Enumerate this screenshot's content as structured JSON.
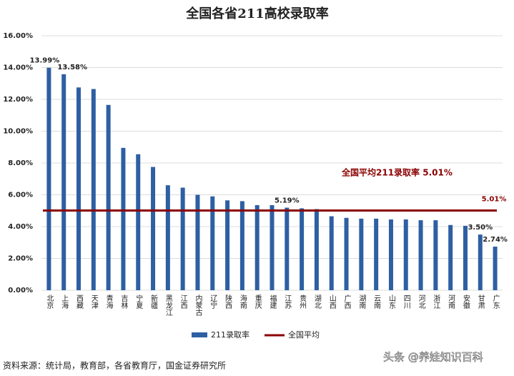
{
  "chart_data": {
    "type": "bar",
    "title": "全国各省211高校录取率",
    "categories": [
      "北京",
      "上海",
      "西藏",
      "天津",
      "青海",
      "吉林",
      "宁夏",
      "新疆",
      "黑龙江",
      "江西",
      "内蒙古",
      "辽宁",
      "陕西",
      "海南",
      "重庆",
      "福建",
      "江苏",
      "贵州",
      "湖北",
      "山西",
      "广西",
      "湖南",
      "云南",
      "山东",
      "四川",
      "河北",
      "浙江",
      "河南",
      "安徽",
      "甘肃",
      "广东"
    ],
    "series": [
      {
        "name": "211录取率",
        "color": "#2e5fa3",
        "values": [
          13.99,
          13.58,
          12.75,
          12.65,
          11.65,
          8.95,
          8.55,
          7.75,
          6.6,
          6.45,
          6.0,
          5.9,
          5.65,
          5.6,
          5.35,
          5.35,
          5.19,
          5.15,
          5.1,
          4.65,
          4.55,
          4.5,
          4.5,
          4.45,
          4.45,
          4.4,
          4.4,
          4.1,
          4.05,
          3.5,
          2.74
        ],
        "value_labels": [
          "13.99%",
          "13.58%",
          null,
          null,
          null,
          null,
          null,
          null,
          null,
          null,
          null,
          null,
          null,
          null,
          null,
          null,
          "5.19%",
          null,
          null,
          null,
          null,
          null,
          null,
          null,
          null,
          null,
          null,
          null,
          null,
          "3.50%",
          "2.74%"
        ]
      }
    ],
    "average": {
      "name": "全国平均",
      "value": 5.01,
      "label": "5.01%",
      "color": "#8b0000"
    },
    "annotation": "全国平均211录取率 5.01%",
    "ylim": [
      0,
      16
    ],
    "yticks": [
      {
        "value": 0,
        "label": "0.00%"
      },
      {
        "value": 2,
        "label": "2.00%"
      },
      {
        "value": 4,
        "label": "4.00%"
      },
      {
        "value": 6,
        "label": "6.00%"
      },
      {
        "value": 8,
        "label": "8.00%"
      },
      {
        "value": 10,
        "label": "10.00%"
      },
      {
        "value": 12,
        "label": "12.00%"
      },
      {
        "value": 14,
        "label": "14.00%"
      },
      {
        "value": 16,
        "label": "16.00%"
      }
    ],
    "grid": true,
    "source": "资料来源：统计局，教育部，各省教育厅，国金证券研究所"
  },
  "watermark": "头条 @养娃知识百科"
}
